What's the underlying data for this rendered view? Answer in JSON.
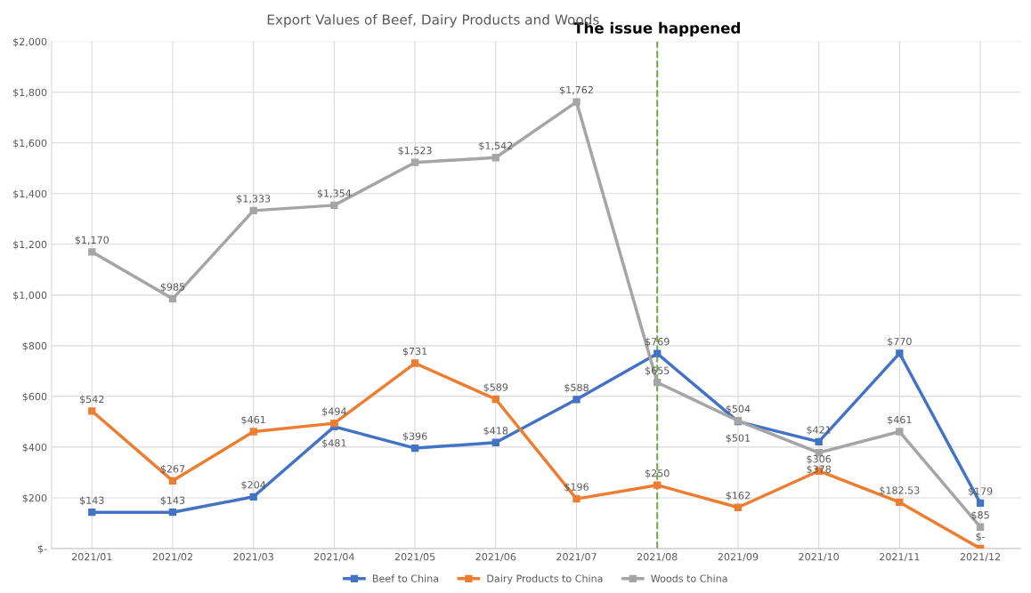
{
  "chart_data": {
    "type": "line",
    "title": "Export Values of Beef, Dairy Products and Woods",
    "categories": [
      "2021/01",
      "2021/02",
      "2021/03",
      "2021/04",
      "2021/05",
      "2021/06",
      "2021/07",
      "2021/08",
      "2021/09",
      "2021/10",
      "2021/11",
      "2021/12"
    ],
    "series": [
      {
        "name": "Beef to China",
        "color": "#4472c4",
        "values": [
          143,
          143,
          204,
          481,
          396,
          418,
          588,
          769,
          501,
          421,
          770,
          179
        ],
        "value_labels": [
          "$143",
          "$143",
          "$204",
          "$481",
          "$396",
          "$418",
          "$588",
          "$769",
          "$501",
          "$421",
          "$770",
          "$179"
        ]
      },
      {
        "name": "Dairy Products to China",
        "color": "#ed7d31",
        "values": [
          542,
          267,
          461,
          494,
          731,
          589,
          196,
          250,
          162,
          306,
          182.53,
          0
        ],
        "value_labels": [
          "$542",
          "$267",
          "$461",
          "$494",
          "$731",
          "$589",
          "$196",
          "$250",
          "$162",
          "$306",
          "$182.53",
          "$-"
        ]
      },
      {
        "name": "Woods to China",
        "color": "#a5a5a5",
        "values": [
          1170,
          985,
          1333,
          1354,
          1523,
          1542,
          1762,
          655,
          504,
          378,
          461,
          85
        ],
        "value_labels": [
          "$1,170",
          "$985",
          "$1,333",
          "$1,354",
          "$1,523",
          "$1,542",
          "$1,762",
          "$655",
          "$504",
          "$378",
          "$461",
          "$85"
        ]
      }
    ],
    "ylim": [
      0,
      2000
    ],
    "yticks": [
      {
        "value": 0,
        "label": "$-"
      },
      {
        "value": 200,
        "label": "$200"
      },
      {
        "value": 400,
        "label": "$400"
      },
      {
        "value": 600,
        "label": "$600"
      },
      {
        "value": 800,
        "label": "$800"
      },
      {
        "value": 1000,
        "label": "$1,000"
      },
      {
        "value": 1200,
        "label": "$1,200"
      },
      {
        "value": 1400,
        "label": "$1,400"
      },
      {
        "value": 1600,
        "label": "$1,600"
      },
      {
        "value": 1800,
        "label": "$1,800"
      },
      {
        "value": 2000,
        "label": "$2,000"
      }
    ],
    "ref_lines": [
      {
        "axis": "x",
        "value": "2021/08",
        "label": "The issue happened",
        "color": "#70ad47",
        "line_style": "dashed"
      }
    ],
    "grid": true,
    "legend": "bottom",
    "marker": "square",
    "line_style": "solid"
  }
}
